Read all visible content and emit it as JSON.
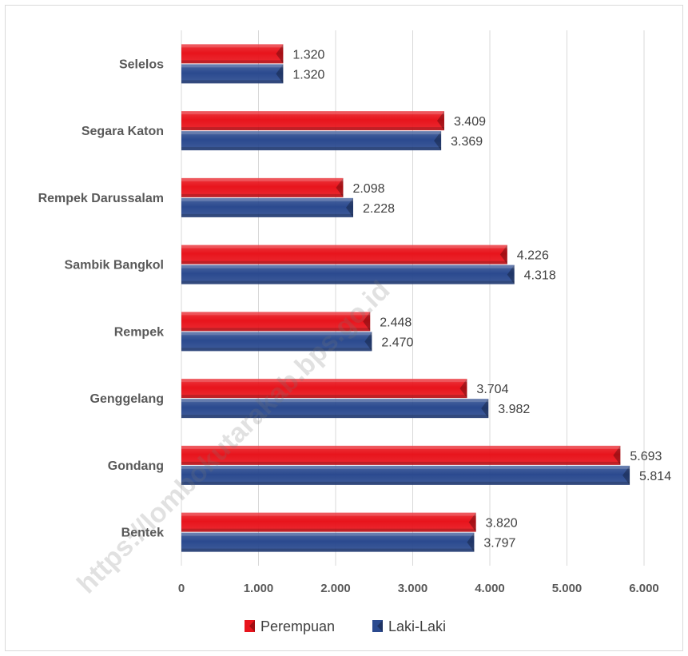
{
  "chart_data": {
    "type": "bar",
    "orientation": "horizontal",
    "categories": [
      "Selelos",
      "Segara Katon",
      "Rempek Darussalam",
      "Sambik Bangkol",
      "Rempek",
      "Genggelang",
      "Gondang",
      "Bentek"
    ],
    "series": [
      {
        "name": "Perempuan",
        "color": "#e8141c",
        "values": [
          1320,
          3409,
          2098,
          4226,
          2448,
          3704,
          5693,
          3820
        ],
        "labels": [
          "1.320",
          "3.409",
          "2.098",
          "4.226",
          "2.448",
          "3.704",
          "5.693",
          "3.820"
        ]
      },
      {
        "name": "Laki-Laki",
        "color": "#2b4a8f",
        "values": [
          1320,
          3369,
          2228,
          4318,
          2470,
          3982,
          5814,
          3797
        ],
        "labels": [
          "1.320",
          "3.369",
          "2.228",
          "4.318",
          "2.470",
          "3.982",
          "5.814",
          "3.797"
        ]
      }
    ],
    "xlim": [
      0,
      6000
    ],
    "xticks": [
      0,
      1000,
      2000,
      3000,
      4000,
      5000,
      6000
    ],
    "xtick_labels": [
      "0",
      "1.000",
      "2.000",
      "3.000",
      "4.000",
      "5.000",
      "6.000"
    ],
    "grid": "vertical",
    "legend_position": "bottom",
    "title": "",
    "xlabel": "",
    "ylabel": ""
  },
  "watermark": "https://lombokutarakab.bps.go.id",
  "colors": {
    "gridline": "#d9d9d9",
    "text": "#595959",
    "border": "#d9d9d9"
  }
}
